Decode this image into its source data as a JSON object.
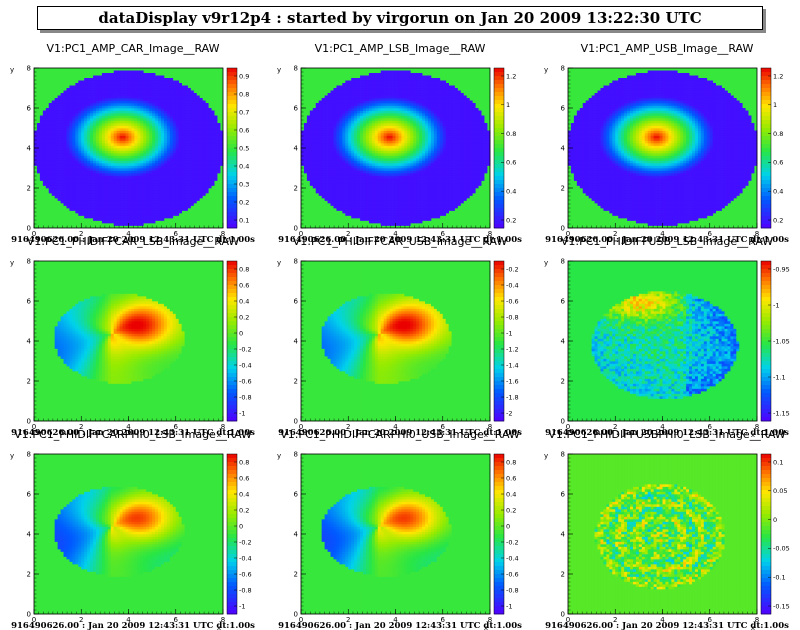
{
  "window": {
    "title": "dataDisplay v9r12p4 : started by virgorun on Jan 20 2009 13:22:30 UTC"
  },
  "chart_data": [
    {
      "type": "heatmap",
      "pattern": "amp",
      "title": "V1:PC1_AMP_CAR_Image__RAW",
      "xlabel": "x",
      "ylabel": "y",
      "xlim": [
        0,
        8
      ],
      "ylim": [
        0,
        8
      ],
      "x_ticks": [
        "0",
        "2",
        "4",
        "6",
        "8"
      ],
      "y_ticks": [
        "0",
        "2",
        "4",
        "6",
        "8"
      ],
      "z_ticks": [
        "0.9",
        "0.8",
        "0.7",
        "0.6",
        "0.5",
        "0.4",
        "0.3",
        "0.2",
        "0.1"
      ],
      "footer": "916490626.00 : Jan 20 2009 12:43:31 UTC dt:1.00s"
    },
    {
      "type": "heatmap",
      "pattern": "amp",
      "title": "V1:PC1_AMP_LSB_Image__RAW",
      "xlabel": "x",
      "ylabel": "y",
      "xlim": [
        0,
        8
      ],
      "ylim": [
        0,
        8
      ],
      "x_ticks": [
        "0",
        "2",
        "4",
        "6",
        "8"
      ],
      "y_ticks": [
        "0",
        "2",
        "4",
        "6",
        "8"
      ],
      "z_ticks": [
        "1.2",
        "1",
        "0.8",
        "0.6",
        "0.4",
        "0.2"
      ],
      "footer": "916490626.00 : Jan 20 2009 12:43:31 UTC dt:1.00s"
    },
    {
      "type": "heatmap",
      "pattern": "amp",
      "title": "V1:PC1_AMP_USB_Image__RAW",
      "xlabel": "x",
      "ylabel": "y",
      "xlim": [
        0,
        8
      ],
      "ylim": [
        0,
        8
      ],
      "x_ticks": [
        "0",
        "2",
        "4",
        "6",
        "8"
      ],
      "y_ticks": [
        "0",
        "2",
        "4",
        "6",
        "8"
      ],
      "z_ticks": [
        "1.2",
        "1",
        "0.8",
        "0.6",
        "0.4",
        "0.2"
      ],
      "footer": "916490626.00 : Jan 20 2009 12:43:31 UTC dt:1.00s"
    },
    {
      "type": "heatmap",
      "pattern": "phase",
      "title": "V1:PC1_PHIDIFFCAR_LSB_Image__RAW",
      "xlabel": "x",
      "ylabel": "y",
      "xlim": [
        0,
        8
      ],
      "ylim": [
        0,
        8
      ],
      "x_ticks": [
        "0",
        "2",
        "4",
        "6",
        "8"
      ],
      "y_ticks": [
        "0",
        "2",
        "4",
        "6",
        "8"
      ],
      "z_ticks": [
        "0.8",
        "0.6",
        "0.4",
        "0.2",
        "0",
        "-0.2",
        "-0.4",
        "-0.6",
        "-0.8",
        "-1"
      ],
      "footer": "916490626.00 : Jan 20 2009 12:43:31 UTC dt:1.00s"
    },
    {
      "type": "heatmap",
      "pattern": "phase",
      "title": "V1:PC1_PHIDIFFCAR_USB_Image__RAW",
      "xlabel": "x",
      "ylabel": "y",
      "xlim": [
        0,
        8
      ],
      "ylim": [
        0,
        8
      ],
      "x_ticks": [
        "0",
        "2",
        "4",
        "6",
        "8"
      ],
      "y_ticks": [
        "0",
        "2",
        "4",
        "6",
        "8"
      ],
      "z_ticks": [
        "-0.2",
        "-0.4",
        "-0.6",
        "-0.8",
        "-1",
        "-1.2",
        "-1.4",
        "-1.6",
        "-1.8",
        "-2"
      ],
      "footer": "916490626.00 : Jan 20 2009 12:43:31 UTC dt:1.00s"
    },
    {
      "type": "heatmap",
      "pattern": "noisy",
      "title": "V1:PC1_PHIDIFFUSB_LSB_Image__RAW",
      "xlabel": "x",
      "ylabel": "y",
      "xlim": [
        0,
        8
      ],
      "ylim": [
        0,
        8
      ],
      "x_ticks": [
        "0",
        "2",
        "4",
        "6",
        "8"
      ],
      "y_ticks": [
        "0",
        "2",
        "4",
        "6",
        "8"
      ],
      "z_ticks": [
        "-0.95",
        "-1",
        "-1.05",
        "-1.1",
        "-1.15"
      ],
      "footer": "916490626.00 : Jan 20 2009 12:43:31 UTC dt:1.00s"
    },
    {
      "type": "heatmap",
      "pattern": "phase2",
      "title": "V1:PC1_PHIDIFFCARPHI0_LSB_Image__RAW",
      "xlabel": "x",
      "ylabel": "y",
      "xlim": [
        0,
        8
      ],
      "ylim": [
        0,
        8
      ],
      "x_ticks": [
        "0",
        "2",
        "4",
        "6",
        "8"
      ],
      "y_ticks": [
        "0",
        "2",
        "4",
        "6",
        "8"
      ],
      "z_ticks": [
        "0.8",
        "0.6",
        "0.4",
        "0.2",
        "0",
        "-0.2",
        "-0.4",
        "-0.6",
        "-0.8",
        "-1"
      ],
      "footer": "916490626.00 : Jan 20 2009 12:43:31 UTC dt:1.00s"
    },
    {
      "type": "heatmap",
      "pattern": "phase2",
      "title": "V1:PC1_PHIDIFFCARPHI0_USB_Image__RAW",
      "xlabel": "x",
      "ylabel": "y",
      "xlim": [
        0,
        8
      ],
      "ylim": [
        0,
        8
      ],
      "x_ticks": [
        "0",
        "2",
        "4",
        "6",
        "8"
      ],
      "y_ticks": [
        "0",
        "2",
        "4",
        "6",
        "8"
      ],
      "z_ticks": [
        "0.8",
        "0.6",
        "0.4",
        "0.2",
        "0",
        "-0.2",
        "-0.4",
        "-0.6",
        "-0.8",
        "-1"
      ],
      "footer": "916490626.00 : Jan 20 2009 12:43:31 UTC dt:1.00s"
    },
    {
      "type": "heatmap",
      "pattern": "rings",
      "title": "V1:PC1_PHIDIFFUSBPHI0_LSB_Image__RAW",
      "xlabel": "x",
      "ylabel": "y",
      "xlim": [
        0,
        8
      ],
      "ylim": [
        0,
        8
      ],
      "x_ticks": [
        "0",
        "2",
        "4",
        "6",
        "8"
      ],
      "y_ticks": [
        "0",
        "2",
        "4",
        "6",
        "8"
      ],
      "z_ticks": [
        "0.1",
        "0.05",
        "0",
        "-0.05",
        "-0.1",
        "-0.15"
      ],
      "footer": "916490626.00 : Jan 20 2009 12:43:31 UTC dt:1.00s"
    }
  ]
}
